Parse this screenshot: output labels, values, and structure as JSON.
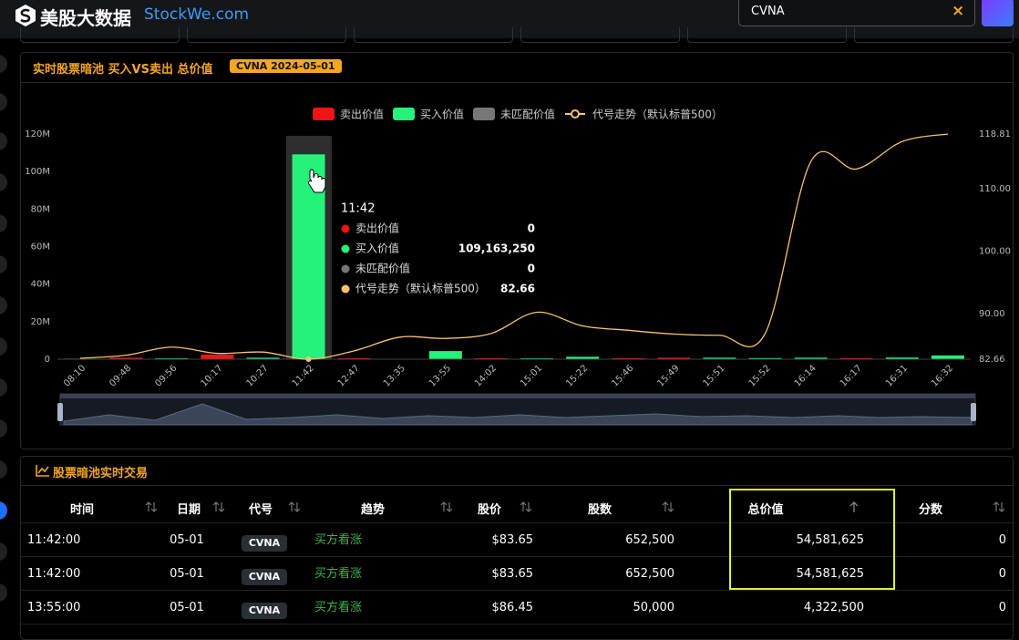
{
  "header": {
    "brand": "美股大数据",
    "site": "StockWe.com",
    "search": "CVNA",
    "clear": "×"
  },
  "chart_panel": {
    "title": "实时股票暗池 买入VS卖出 总价值",
    "badge": "CVNA 2024-05-01"
  },
  "chart_data": {
    "type": "bar",
    "categories": [
      "08:10",
      "09:48",
      "09:56",
      "10:17",
      "10:27",
      "11:42",
      "12:47",
      "13:35",
      "13:55",
      "14:02",
      "15:01",
      "15:22",
      "15:46",
      "15:49",
      "15:51",
      "15:52",
      "16:14",
      "16:17",
      "16:31",
      "16:32"
    ],
    "series": [
      {
        "name": "卖出价值",
        "color": "#f01414",
        "values": [
          0,
          800000,
          0,
          2500000,
          0,
          0,
          500000,
          0,
          0,
          500000,
          0,
          0,
          500000,
          800000,
          0,
          0,
          0,
          500000,
          0,
          0
        ]
      },
      {
        "name": "买入价值",
        "color": "#24f27a",
        "values": [
          300000,
          0,
          500000,
          0,
          800000,
          109163250,
          0,
          0,
          4322500,
          0,
          500000,
          1300000,
          0,
          0,
          800000,
          600000,
          800000,
          0,
          900000,
          2000000
        ]
      },
      {
        "name": "未匹配价值",
        "color": "#777777",
        "values": [
          0,
          0,
          0,
          0,
          0,
          0,
          0,
          0,
          0,
          0,
          0,
          0,
          0,
          0,
          0,
          0,
          0,
          0,
          0,
          0
        ]
      },
      {
        "name": "代号走势（默认标普500）",
        "color": "#f7c46c",
        "type": "line",
        "axis": "y2",
        "values": [
          82.8,
          83.3,
          84.6,
          83.6,
          83.8,
          82.66,
          84.0,
          86.2,
          86.0,
          86.8,
          90.2,
          88.0,
          87.3,
          86.7,
          86.5,
          86.8,
          114.4,
          113.2,
          117.6,
          118.81
        ]
      }
    ],
    "ylim": [
      0,
      120000000
    ],
    "yticks": [
      0,
      {
        "value": 20000000,
        "label": "20M"
      },
      {
        "value": 40000000,
        "label": "40M"
      },
      {
        "value": 60000000,
        "label": "60M"
      },
      {
        "value": 80000000,
        "label": "80M"
      },
      {
        "value": 100000000,
        "label": "100M"
      },
      {
        "value": 120000000,
        "label": "120M"
      }
    ],
    "y2lim": [
      82.66,
      118.81
    ],
    "y2ticks": [
      82.66,
      {
        "value": 90,
        "label": "90.00"
      },
      {
        "value": 100,
        "label": "100.00"
      },
      {
        "value": 110,
        "label": "110.00"
      },
      118.81
    ],
    "grid": false,
    "legend": "top",
    "tooltip": {
      "title": "11:42",
      "values": [
        "0",
        "109,163,250",
        "0",
        "82.66"
      ]
    }
  },
  "table": {
    "title": "股票暗池实时交易",
    "columns": [
      "时间",
      "日期",
      "代号",
      "趋势",
      "股价",
      "股数",
      "总价值",
      "分数"
    ],
    "rows": [
      [
        "11:42:00",
        "05-01",
        "CVNA",
        "买方看涨",
        "$83.65",
        "652,500",
        "54,581,625",
        "0"
      ],
      [
        "11:42:00",
        "05-01",
        "CVNA",
        "买方看涨",
        "$83.65",
        "652,500",
        "54,581,625",
        "0"
      ],
      [
        "13:55:00",
        "05-01",
        "CVNA",
        "买方看涨",
        "$86.45",
        "50,000",
        "4,322,500",
        "0"
      ]
    ]
  }
}
